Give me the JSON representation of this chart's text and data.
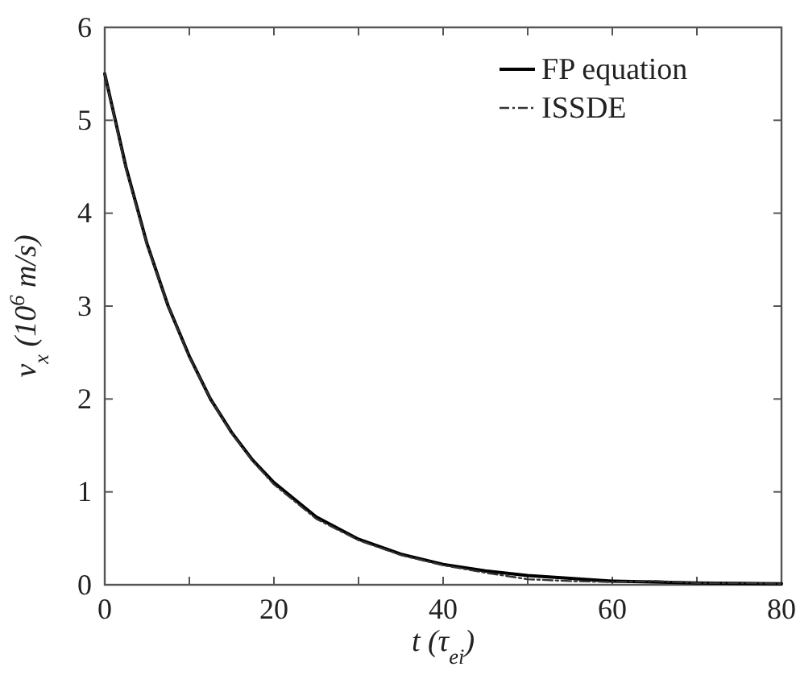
{
  "chart_data": {
    "type": "line",
    "xlabel": "t (τ$_{ei}$)",
    "ylabel": "v$_{x}$ (10$^{6}$ m/s)",
    "xlim": [
      0,
      80
    ],
    "ylim": [
      0,
      6
    ],
    "xticks": [
      0,
      {
        "value": 10,
        "label": null
      },
      20,
      {
        "value": 30,
        "label": null
      },
      40,
      {
        "value": 50,
        "label": null
      },
      60,
      {
        "value": 70,
        "label": null
      },
      80
    ],
    "yticks": [
      0,
      1,
      2,
      3,
      4,
      5,
      6
    ],
    "grid": false,
    "legend": "top right",
    "marker": "none",
    "series": [
      {
        "name": "FP equation",
        "color": "#000000",
        "line_style": "solid",
        "x": [
          0,
          2.5,
          5,
          7.5,
          10,
          12.5,
          15,
          17.5,
          20,
          25,
          30,
          35,
          40,
          45,
          50,
          55,
          60,
          70,
          80
        ],
        "values": [
          5.5,
          4.5,
          3.67,
          3.0,
          2.46,
          2.0,
          1.64,
          1.34,
          1.1,
          0.73,
          0.49,
          0.33,
          0.22,
          0.15,
          0.1,
          0.07,
          0.04,
          0.02,
          0.01
        ]
      },
      {
        "name": "ISSDE",
        "color": "#333333",
        "line_style": "dashed",
        "x": [
          0,
          2.5,
          5,
          7.5,
          10,
          12.5,
          15,
          17.5,
          20,
          25,
          30,
          35,
          40,
          45,
          50,
          55,
          60,
          65,
          70,
          75,
          80
        ],
        "values": [
          5.5,
          4.48,
          3.66,
          3.0,
          2.45,
          2.0,
          1.63,
          1.33,
          1.08,
          0.71,
          0.48,
          0.32,
          0.21,
          0.13,
          0.06,
          0.04,
          0.03,
          0.04,
          0.02,
          0.02,
          0.01
        ]
      }
    ]
  }
}
